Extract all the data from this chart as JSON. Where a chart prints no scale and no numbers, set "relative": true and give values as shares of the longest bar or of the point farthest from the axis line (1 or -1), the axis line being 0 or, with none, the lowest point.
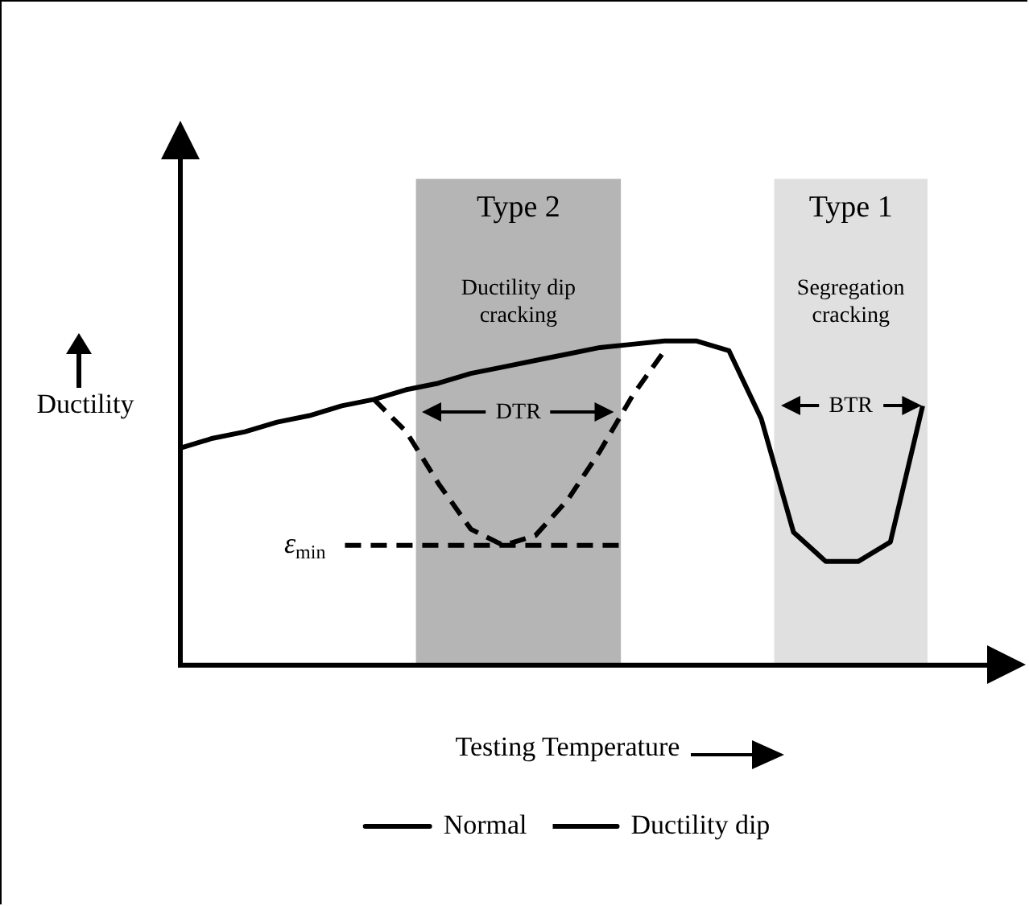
{
  "chart_data": {
    "type": "line",
    "relative": true,
    "xlabel": "Testing Temperature",
    "ylabel": "Ductility",
    "legend": "bottom",
    "marker": "none",
    "categories": [
      null,
      null,
      null,
      null,
      null,
      null,
      null,
      null,
      null,
      null,
      null,
      null,
      null,
      null,
      null,
      null,
      null,
      null,
      null,
      null,
      null,
      null,
      null,
      null,
      null
    ],
    "series": [
      {
        "name": "Normal",
        "color": "#000000",
        "line_style": "solid",
        "values": [
          0.67,
          0.7,
          0.72,
          0.75,
          0.77,
          0.8,
          0.82,
          0.85,
          0.87,
          0.9,
          0.92,
          0.94,
          0.96,
          0.98,
          0.99,
          1,
          1,
          0.97,
          0.76,
          0.41,
          0.32,
          0.32,
          0.38,
          0.8,
          null
        ]
      },
      {
        "name": "Ductility dip",
        "color": "#000000",
        "line_style": "dashed",
        "values": [
          null,
          null,
          null,
          null,
          null,
          null,
          0.82,
          0.72,
          0.56,
          0.42,
          0.37,
          0.4,
          0.51,
          0.66,
          0.83,
          0.97,
          null,
          null,
          null,
          null,
          null,
          null,
          null,
          null,
          null
        ]
      }
    ],
    "ref_lines": [
      {
        "axis": "y",
        "value": 0.37,
        "label": "ε$_{min}$",
        "line_style": "dashed"
      }
    ],
    "annotations": [
      "Type 2",
      "Ductility dip\ncracking",
      "DTR",
      "Type 1",
      "Segregation\ncracking",
      "BTR"
    ]
  }
}
